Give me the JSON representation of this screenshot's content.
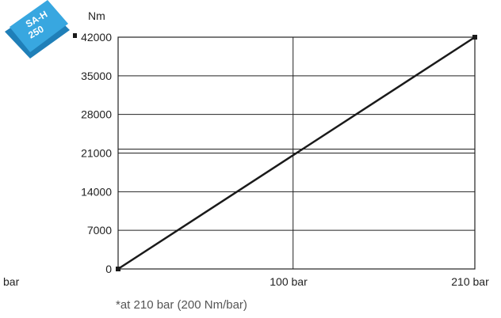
{
  "chart_data": {
    "type": "line",
    "title": "",
    "ylabel": "Nm",
    "xlabel": "",
    "ylim": [
      0,
      42000
    ],
    "xlim": [
      0,
      210
    ],
    "y_ticks": [
      0,
      7000,
      14000,
      21000,
      28000,
      35000,
      42000
    ],
    "y_tick_labels": [
      "0",
      "7000",
      "14000",
      "21000",
      "28000",
      "35000",
      "42000"
    ],
    "x_ticks": [
      0,
      100,
      210
    ],
    "x_tick_labels": [
      "bar",
      "100 bar",
      "210 bar"
    ],
    "series": [
      {
        "x": [
          0,
          210
        ],
        "y": [
          0,
          42000
        ]
      }
    ],
    "grid": true,
    "note": "*at 210 bar (200 Nm/bar)",
    "badge": {
      "line1": "SA-H",
      "line2": "250",
      "color": "#2a9bd6"
    },
    "line_color": "#1a1a1a"
  }
}
